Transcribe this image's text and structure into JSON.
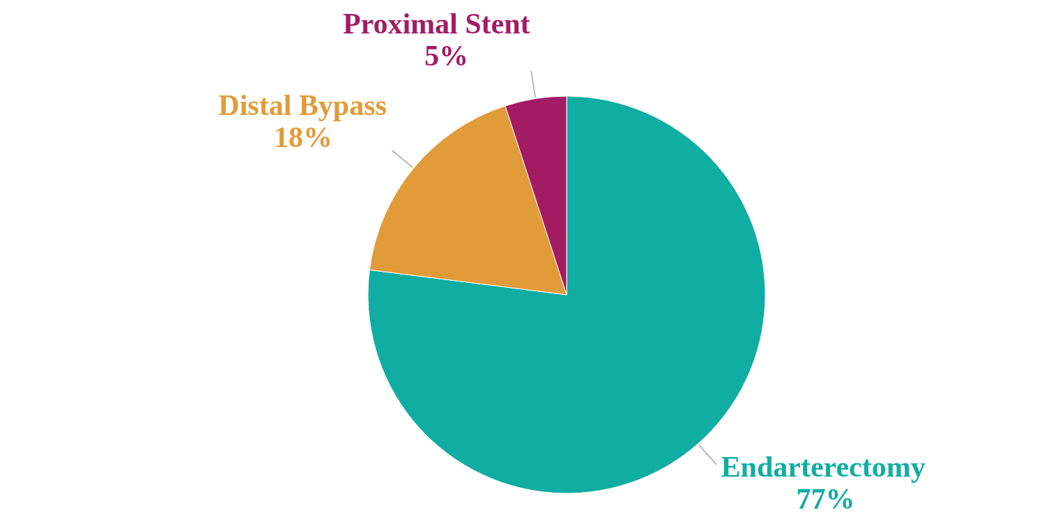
{
  "chart_data": {
    "type": "pie",
    "categories": [
      "Endarterectomy",
      "Distal Bypass",
      "Proximal Stent"
    ],
    "values": [
      77,
      18,
      5
    ],
    "colors": [
      "#10ada2",
      "#e29b39",
      "#a31c63"
    ],
    "value_labels": [
      "77%",
      "18%",
      "5%"
    ]
  }
}
